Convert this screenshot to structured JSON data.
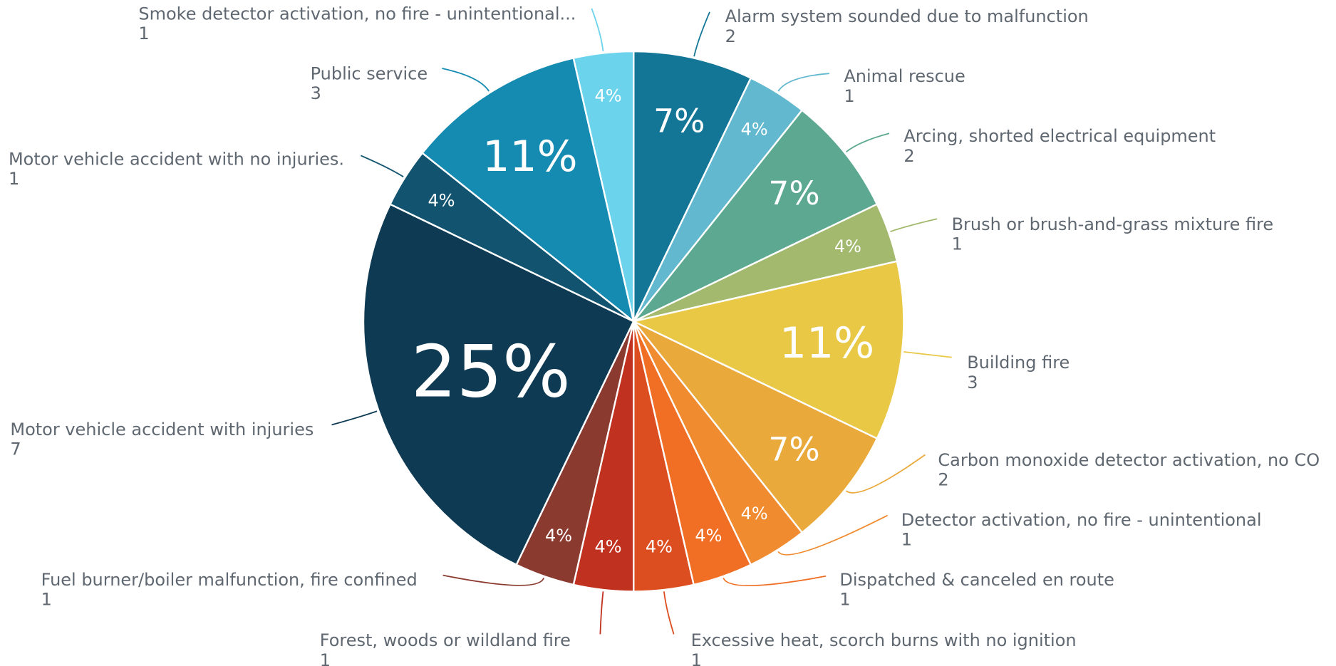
{
  "chart_data": {
    "type": "pie",
    "categories": [
      "Alarm system sounded due to malfunction",
      "Animal rescue",
      "Arcing, shorted electrical equipment",
      "Brush or brush-and-grass mixture fire",
      "Building fire",
      "Carbon monoxide detector activation, no CO",
      "Detector activation, no fire - unintentional",
      "Dispatched & canceled en route",
      "Excessive heat, scorch burns with no ignition",
      "Forest, woods or wildland fire",
      "Fuel burner/boiler malfunction, fire confined",
      "Motor vehicle accident with injuries",
      "Motor vehicle accident with no injuries.",
      "Public service",
      "Smoke detector activation, no fire - unintentional..."
    ],
    "values": [
      2,
      1,
      2,
      1,
      3,
      2,
      1,
      1,
      1,
      1,
      1,
      7,
      1,
      3,
      1
    ],
    "value_labels": [
      "7%",
      "4%",
      "7%",
      "4%",
      "11%",
      "7%",
      "4%",
      "4%",
      "4%",
      "4%",
      "4%",
      "25%",
      "4%",
      "11%",
      "4%"
    ],
    "colors": [
      "#137696",
      "#62b8cf",
      "#5ca891",
      "#a3b96e",
      "#e8c845",
      "#eaa93b",
      "#f08b2f",
      "#f06f25",
      "#dc4e1f",
      "#c0311f",
      "#8b3a30",
      "#0e3b53",
      "#12546f",
      "#168bb1",
      "#6bd3ec"
    ]
  }
}
